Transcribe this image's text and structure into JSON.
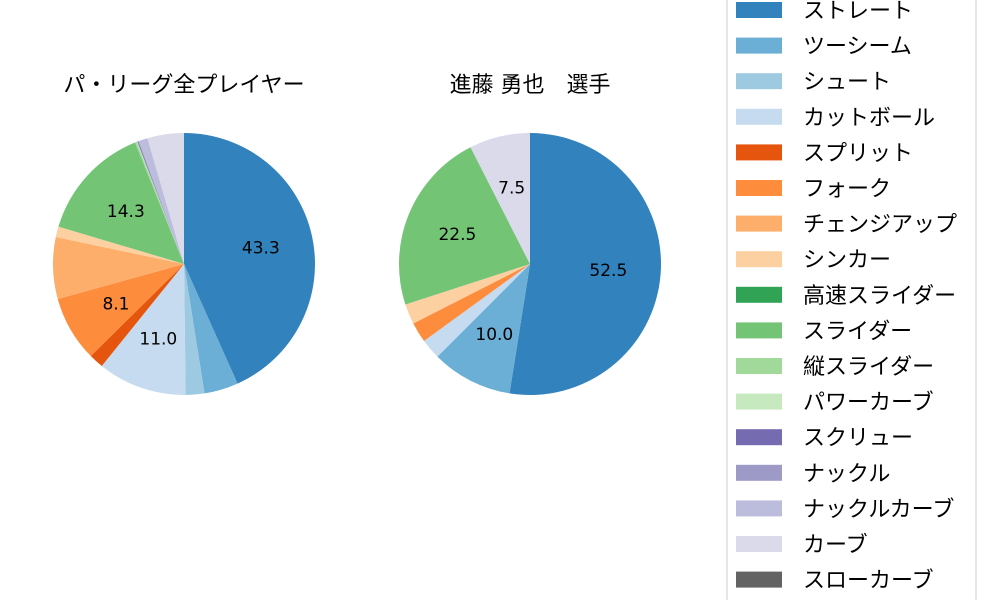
{
  "chart_data": [
    {
      "type": "pie",
      "title": "パ・リーグ全プレイヤー",
      "start": "top",
      "direction": "clockwise",
      "slices": [
        {
          "name": "ストレート",
          "value": 43.3,
          "label": "43.3"
        },
        {
          "name": "ツーシーム",
          "value": 4.2,
          "label": ""
        },
        {
          "name": "シュート",
          "value": 2.3,
          "label": ""
        },
        {
          "name": "カットボール",
          "value": 11.0,
          "label": "11.0"
        },
        {
          "name": "スプリット",
          "value": 1.8,
          "label": ""
        },
        {
          "name": "フォーク",
          "value": 8.1,
          "label": "8.1"
        },
        {
          "name": "チェンジアップ",
          "value": 7.6,
          "label": ""
        },
        {
          "name": "シンカー",
          "value": 1.3,
          "label": ""
        },
        {
          "name": "高速スライダー",
          "value": 0.0,
          "label": ""
        },
        {
          "name": "スライダー",
          "value": 14.3,
          "label": "14.3"
        },
        {
          "name": "縦スライダー",
          "value": 0.2,
          "label": ""
        },
        {
          "name": "パワーカーブ",
          "value": 0.1,
          "label": ""
        },
        {
          "name": "スクリュー",
          "value": 0.1,
          "label": ""
        },
        {
          "name": "ナックル",
          "value": 0.1,
          "label": ""
        },
        {
          "name": "ナックルカーブ",
          "value": 1.1,
          "label": ""
        },
        {
          "name": "カーブ",
          "value": 4.5,
          "label": ""
        },
        {
          "name": "スローカーブ",
          "value": 0.0,
          "label": ""
        }
      ]
    },
    {
      "type": "pie",
      "title": "進藤 勇也　選手",
      "start": "top",
      "direction": "clockwise",
      "slices": [
        {
          "name": "ストレート",
          "value": 52.5,
          "label": "52.5"
        },
        {
          "name": "ツーシーム",
          "value": 10.0,
          "label": "10.0"
        },
        {
          "name": "カットボール",
          "value": 2.5,
          "label": ""
        },
        {
          "name": "フォーク",
          "value": 2.5,
          "label": ""
        },
        {
          "name": "シンカー",
          "value": 2.5,
          "label": ""
        },
        {
          "name": "スライダー",
          "value": 22.5,
          "label": "22.5"
        },
        {
          "name": "カーブ",
          "value": 7.5,
          "label": "7.5"
        }
      ]
    }
  ],
  "legend": {
    "placement": "right",
    "items": [
      {
        "name": "ストレート",
        "color": "#3182bd"
      },
      {
        "name": "ツーシーム",
        "color": "#6baed6"
      },
      {
        "name": "シュート",
        "color": "#9ecae1"
      },
      {
        "name": "カットボール",
        "color": "#c6dbef"
      },
      {
        "name": "スプリット",
        "color": "#e6550d"
      },
      {
        "name": "フォーク",
        "color": "#fd8d3c"
      },
      {
        "name": "チェンジアップ",
        "color": "#fdae6b"
      },
      {
        "name": "シンカー",
        "color": "#fdd0a2"
      },
      {
        "name": "高速スライダー",
        "color": "#31a354"
      },
      {
        "name": "スライダー",
        "color": "#74c476"
      },
      {
        "name": "縦スライダー",
        "color": "#a1d99b"
      },
      {
        "name": "パワーカーブ",
        "color": "#c7e9c0"
      },
      {
        "name": "スクリュー",
        "color": "#756bb1"
      },
      {
        "name": "ナックル",
        "color": "#9e9ac8"
      },
      {
        "name": "ナックルカーブ",
        "color": "#bcbddc"
      },
      {
        "name": "カーブ",
        "color": "#dadaeb"
      },
      {
        "name": "スローカーブ",
        "color": "#636363"
      }
    ]
  }
}
